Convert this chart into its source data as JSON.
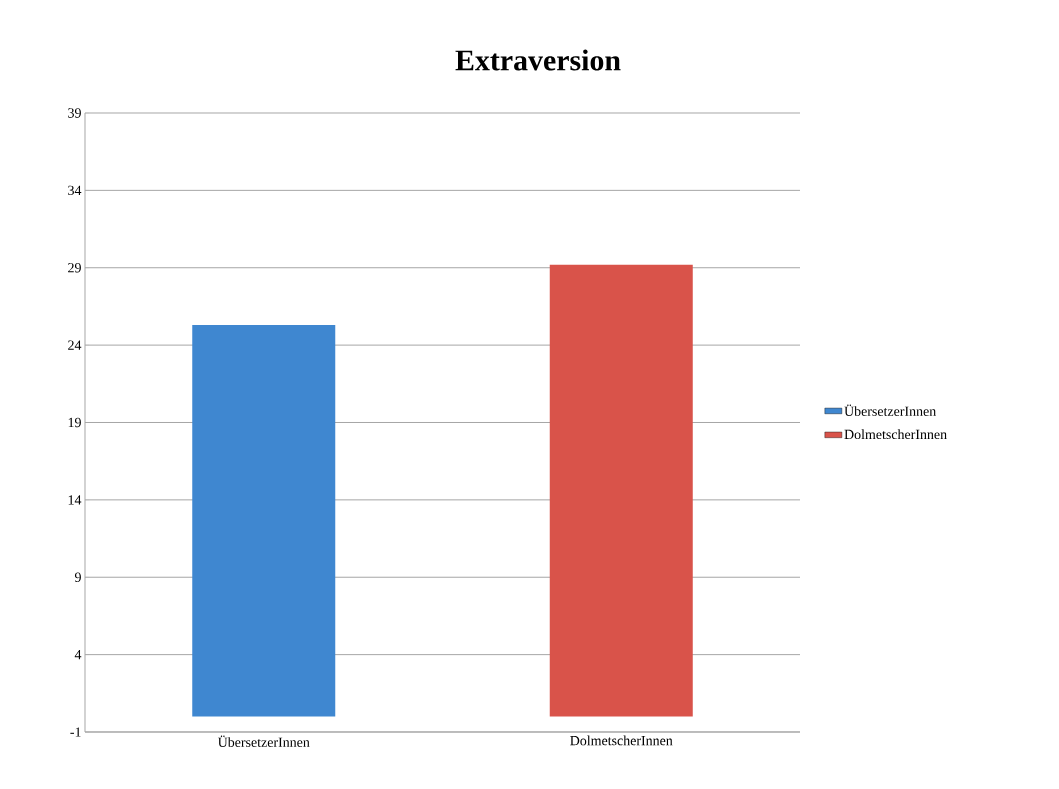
{
  "chart_data": {
    "type": "bar",
    "title": "Extraversion",
    "categories": [
      "ÜbersetzerInnen",
      "DolmetscherInnen"
    ],
    "series": [
      {
        "name": "ÜbersetzerInnen",
        "color": "#3f87d0",
        "values": [
          25.3,
          null
        ]
      },
      {
        "name": "DolmetscherInnen",
        "color": "#d9534a",
        "values": [
          null,
          29.2
        ]
      }
    ],
    "ylim": [
      -1,
      39
    ],
    "yticks": [
      -1,
      4,
      9,
      14,
      19,
      24,
      29,
      34,
      39
    ],
    "grid": "y",
    "legend": "right"
  }
}
